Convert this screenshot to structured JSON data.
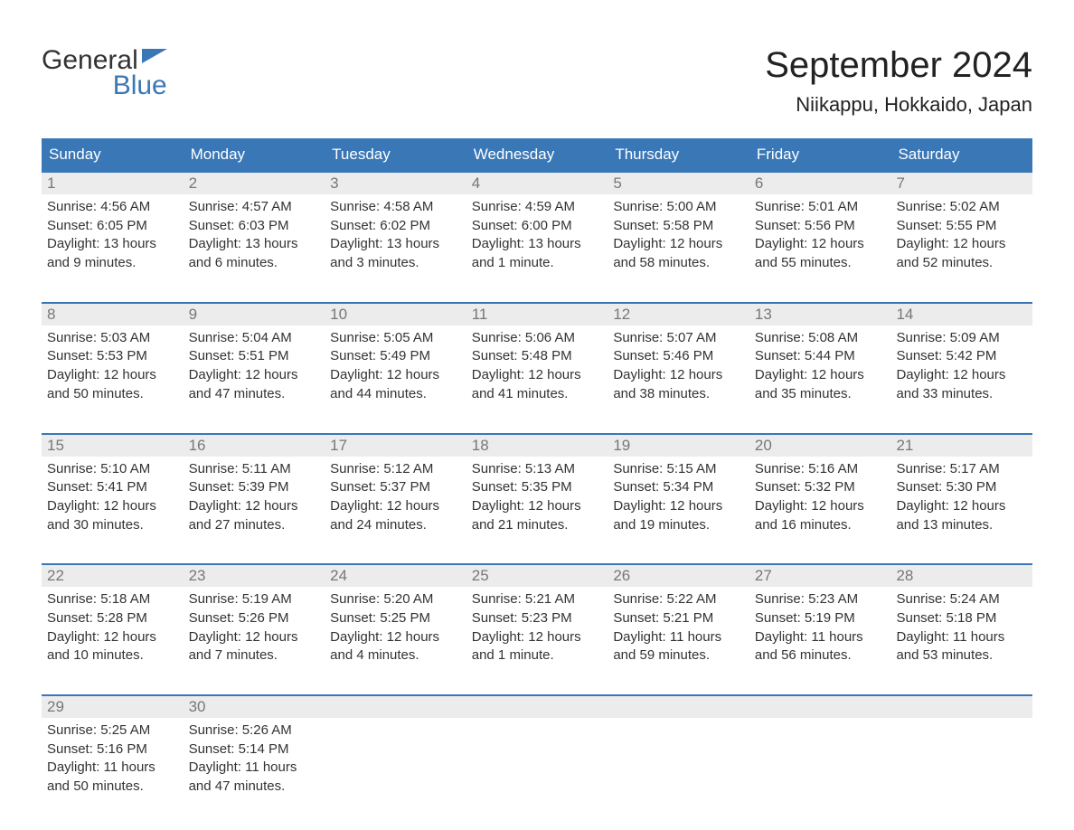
{
  "logo": {
    "text1": "General",
    "text2": "Blue"
  },
  "title": "September 2024",
  "location": "Niikappu, Hokkaido, Japan",
  "colors": {
    "header_bg": "#3a77b7",
    "header_text": "#ffffff",
    "daynum_bg": "#ececec",
    "daynum_text": "#777777",
    "border_top": "#3a77b7",
    "body_text": "#333333",
    "page_bg": "#ffffff"
  },
  "weekdays": [
    "Sunday",
    "Monday",
    "Tuesday",
    "Wednesday",
    "Thursday",
    "Friday",
    "Saturday"
  ],
  "weeks": [
    [
      {
        "n": "1",
        "sunrise": "Sunrise: 4:56 AM",
        "sunset": "Sunset: 6:05 PM",
        "daylight": "Daylight: 13 hours and 9 minutes."
      },
      {
        "n": "2",
        "sunrise": "Sunrise: 4:57 AM",
        "sunset": "Sunset: 6:03 PM",
        "daylight": "Daylight: 13 hours and 6 minutes."
      },
      {
        "n": "3",
        "sunrise": "Sunrise: 4:58 AM",
        "sunset": "Sunset: 6:02 PM",
        "daylight": "Daylight: 13 hours and 3 minutes."
      },
      {
        "n": "4",
        "sunrise": "Sunrise: 4:59 AM",
        "sunset": "Sunset: 6:00 PM",
        "daylight": "Daylight: 13 hours and 1 minute."
      },
      {
        "n": "5",
        "sunrise": "Sunrise: 5:00 AM",
        "sunset": "Sunset: 5:58 PM",
        "daylight": "Daylight: 12 hours and 58 minutes."
      },
      {
        "n": "6",
        "sunrise": "Sunrise: 5:01 AM",
        "sunset": "Sunset: 5:56 PM",
        "daylight": "Daylight: 12 hours and 55 minutes."
      },
      {
        "n": "7",
        "sunrise": "Sunrise: 5:02 AM",
        "sunset": "Sunset: 5:55 PM",
        "daylight": "Daylight: 12 hours and 52 minutes."
      }
    ],
    [
      {
        "n": "8",
        "sunrise": "Sunrise: 5:03 AM",
        "sunset": "Sunset: 5:53 PM",
        "daylight": "Daylight: 12 hours and 50 minutes."
      },
      {
        "n": "9",
        "sunrise": "Sunrise: 5:04 AM",
        "sunset": "Sunset: 5:51 PM",
        "daylight": "Daylight: 12 hours and 47 minutes."
      },
      {
        "n": "10",
        "sunrise": "Sunrise: 5:05 AM",
        "sunset": "Sunset: 5:49 PM",
        "daylight": "Daylight: 12 hours and 44 minutes."
      },
      {
        "n": "11",
        "sunrise": "Sunrise: 5:06 AM",
        "sunset": "Sunset: 5:48 PM",
        "daylight": "Daylight: 12 hours and 41 minutes."
      },
      {
        "n": "12",
        "sunrise": "Sunrise: 5:07 AM",
        "sunset": "Sunset: 5:46 PM",
        "daylight": "Daylight: 12 hours and 38 minutes."
      },
      {
        "n": "13",
        "sunrise": "Sunrise: 5:08 AM",
        "sunset": "Sunset: 5:44 PM",
        "daylight": "Daylight: 12 hours and 35 minutes."
      },
      {
        "n": "14",
        "sunrise": "Sunrise: 5:09 AM",
        "sunset": "Sunset: 5:42 PM",
        "daylight": "Daylight: 12 hours and 33 minutes."
      }
    ],
    [
      {
        "n": "15",
        "sunrise": "Sunrise: 5:10 AM",
        "sunset": "Sunset: 5:41 PM",
        "daylight": "Daylight: 12 hours and 30 minutes."
      },
      {
        "n": "16",
        "sunrise": "Sunrise: 5:11 AM",
        "sunset": "Sunset: 5:39 PM",
        "daylight": "Daylight: 12 hours and 27 minutes."
      },
      {
        "n": "17",
        "sunrise": "Sunrise: 5:12 AM",
        "sunset": "Sunset: 5:37 PM",
        "daylight": "Daylight: 12 hours and 24 minutes."
      },
      {
        "n": "18",
        "sunrise": "Sunrise: 5:13 AM",
        "sunset": "Sunset: 5:35 PM",
        "daylight": "Daylight: 12 hours and 21 minutes."
      },
      {
        "n": "19",
        "sunrise": "Sunrise: 5:15 AM",
        "sunset": "Sunset: 5:34 PM",
        "daylight": "Daylight: 12 hours and 19 minutes."
      },
      {
        "n": "20",
        "sunrise": "Sunrise: 5:16 AM",
        "sunset": "Sunset: 5:32 PM",
        "daylight": "Daylight: 12 hours and 16 minutes."
      },
      {
        "n": "21",
        "sunrise": "Sunrise: 5:17 AM",
        "sunset": "Sunset: 5:30 PM",
        "daylight": "Daylight: 12 hours and 13 minutes."
      }
    ],
    [
      {
        "n": "22",
        "sunrise": "Sunrise: 5:18 AM",
        "sunset": "Sunset: 5:28 PM",
        "daylight": "Daylight: 12 hours and 10 minutes."
      },
      {
        "n": "23",
        "sunrise": "Sunrise: 5:19 AM",
        "sunset": "Sunset: 5:26 PM",
        "daylight": "Daylight: 12 hours and 7 minutes."
      },
      {
        "n": "24",
        "sunrise": "Sunrise: 5:20 AM",
        "sunset": "Sunset: 5:25 PM",
        "daylight": "Daylight: 12 hours and 4 minutes."
      },
      {
        "n": "25",
        "sunrise": "Sunrise: 5:21 AM",
        "sunset": "Sunset: 5:23 PM",
        "daylight": "Daylight: 12 hours and 1 minute."
      },
      {
        "n": "26",
        "sunrise": "Sunrise: 5:22 AM",
        "sunset": "Sunset: 5:21 PM",
        "daylight": "Daylight: 11 hours and 59 minutes."
      },
      {
        "n": "27",
        "sunrise": "Sunrise: 5:23 AM",
        "sunset": "Sunset: 5:19 PM",
        "daylight": "Daylight: 11 hours and 56 minutes."
      },
      {
        "n": "28",
        "sunrise": "Sunrise: 5:24 AM",
        "sunset": "Sunset: 5:18 PM",
        "daylight": "Daylight: 11 hours and 53 minutes."
      }
    ],
    [
      {
        "n": "29",
        "sunrise": "Sunrise: 5:25 AM",
        "sunset": "Sunset: 5:16 PM",
        "daylight": "Daylight: 11 hours and 50 minutes."
      },
      {
        "n": "30",
        "sunrise": "Sunrise: 5:26 AM",
        "sunset": "Sunset: 5:14 PM",
        "daylight": "Daylight: 11 hours and 47 minutes."
      },
      {
        "empty": true
      },
      {
        "empty": true
      },
      {
        "empty": true
      },
      {
        "empty": true
      },
      {
        "empty": true
      }
    ]
  ]
}
